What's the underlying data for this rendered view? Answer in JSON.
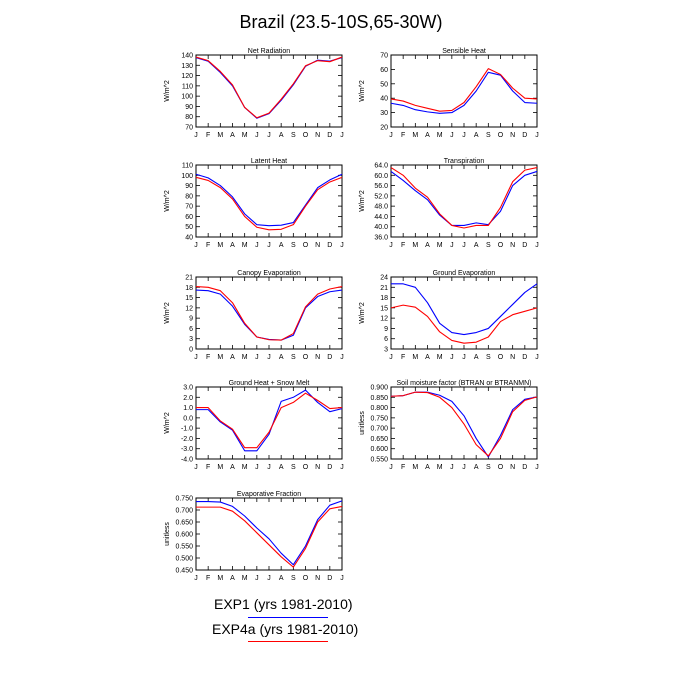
{
  "page_title": "Brazil (23.5-10S,65-30W)",
  "colors": {
    "exp1": "#0000ff",
    "exp4a": "#ff0000"
  },
  "legend": [
    {
      "label": "EXP1 (yrs 1981-2010)",
      "color": "#0000ff"
    },
    {
      "label": "EXP4a (yrs 1981-2010)",
      "color": "#ff0000"
    }
  ],
  "chart_data": [
    {
      "type": "line",
      "title": "Net Radiation",
      "ylabel": "W/m^2",
      "ylim": [
        70,
        140
      ],
      "yticks": [
        "70",
        "80",
        "90",
        "100",
        "110",
        "120",
        "130",
        "140"
      ],
      "categories": [
        "J",
        "F",
        "M",
        "A",
        "M",
        "J",
        "J",
        "A",
        "S",
        "O",
        "N",
        "D",
        "J"
      ],
      "series": [
        {
          "name": "EXP1 (yrs 1981-2010)",
          "values": [
            137.5,
            134,
            123,
            110,
            89,
            78.5,
            83,
            96,
            111,
            129,
            135,
            134,
            137.5
          ]
        },
        {
          "name": "EXP4a (yrs 1981-2010)",
          "values": [
            138,
            134.5,
            124,
            111,
            89,
            79,
            83.5,
            97,
            112,
            129.5,
            134.5,
            133.5,
            138
          ]
        }
      ]
    },
    {
      "type": "line",
      "title": "Sensible Heat",
      "ylabel": "W/m^2",
      "ylim": [
        20,
        70
      ],
      "yticks": [
        "20",
        "30",
        "40",
        "50",
        "60",
        "70"
      ],
      "categories": [
        "J",
        "F",
        "M",
        "A",
        "M",
        "J",
        "J",
        "A",
        "S",
        "O",
        "N",
        "D",
        "J"
      ],
      "series": [
        {
          "name": "EXP1 (yrs 1981-2010)",
          "values": [
            36.5,
            35,
            32,
            30.5,
            29.5,
            30,
            35,
            45,
            58,
            56,
            45,
            37,
            36.5
          ]
        },
        {
          "name": "EXP4a (yrs 1981-2010)",
          "values": [
            39.5,
            38,
            35,
            33,
            31,
            31.5,
            37,
            48,
            60.5,
            56.5,
            47,
            40,
            39.5
          ]
        }
      ]
    },
    {
      "type": "line",
      "title": "Latent Heat",
      "ylabel": "W/m^2",
      "ylim": [
        40,
        110
      ],
      "yticks": [
        "40",
        "50",
        "60",
        "70",
        "80",
        "90",
        "100",
        "110"
      ],
      "categories": [
        "J",
        "F",
        "M",
        "A",
        "M",
        "J",
        "J",
        "A",
        "S",
        "O",
        "N",
        "D",
        "J"
      ],
      "series": [
        {
          "name": "EXP1 (yrs 1981-2010)",
          "values": [
            101,
            97.5,
            90,
            79,
            62.5,
            52,
            51,
            51.5,
            54,
            71,
            88,
            95.5,
            101
          ]
        },
        {
          "name": "EXP4a (yrs 1981-2010)",
          "values": [
            98,
            95,
            88,
            77,
            60,
            49.5,
            47,
            47.5,
            52,
            70,
            86,
            93.5,
            98
          ]
        }
      ]
    },
    {
      "type": "line",
      "title": "Transpiration",
      "ylabel": "W/m^2",
      "ylim": [
        36,
        64
      ],
      "yticks": [
        "36.0",
        "40.0",
        "44.0",
        "48.0",
        "52.0",
        "56.0",
        "60.0",
        "64.0"
      ],
      "categories": [
        "J",
        "F",
        "M",
        "A",
        "M",
        "J",
        "J",
        "A",
        "S",
        "O",
        "N",
        "D",
        "J"
      ],
      "series": [
        {
          "name": "EXP1 (yrs 1981-2010)",
          "values": [
            61.5,
            58,
            54,
            50.5,
            44.5,
            40.5,
            40.5,
            41.5,
            40.8,
            46,
            56,
            60,
            61.5
          ]
        },
        {
          "name": "EXP4a (yrs 1981-2010)",
          "values": [
            63,
            60,
            55,
            51.5,
            45,
            40.5,
            39.5,
            40.5,
            40.5,
            47.5,
            57.5,
            62,
            63
          ]
        }
      ]
    },
    {
      "type": "line",
      "title": "Canopy Evaporation",
      "ylabel": "W/m^2",
      "ylim": [
        0,
        21
      ],
      "yticks": [
        "0",
        "3",
        "6",
        "9",
        "12",
        "15",
        "18",
        "21"
      ],
      "categories": [
        "J",
        "F",
        "M",
        "A",
        "M",
        "J",
        "J",
        "A",
        "S",
        "O",
        "N",
        "D",
        "J"
      ],
      "series": [
        {
          "name": "EXP1 (yrs 1981-2010)",
          "values": [
            17.2,
            17,
            16,
            12.5,
            7.2,
            3.5,
            2.8,
            2.6,
            4,
            12,
            15.3,
            16.7,
            17.2
          ]
        },
        {
          "name": "EXP4a (yrs 1981-2010)",
          "values": [
            18.2,
            18,
            17,
            13.5,
            7.5,
            3.5,
            2.7,
            2.6,
            4.5,
            12.3,
            16,
            17.5,
            18.2
          ]
        }
      ]
    },
    {
      "type": "line",
      "title": "Ground Evaporation",
      "ylabel": "W/m^2",
      "ylim": [
        3,
        24
      ],
      "yticks": [
        "3",
        "6",
        "9",
        "12",
        "15",
        "18",
        "21",
        "24"
      ],
      "categories": [
        "J",
        "F",
        "M",
        "A",
        "M",
        "J",
        "J",
        "A",
        "S",
        "O",
        "N",
        "D",
        "J"
      ],
      "series": [
        {
          "name": "EXP1 (yrs 1981-2010)",
          "values": [
            22,
            22,
            21,
            16.5,
            10.5,
            7.8,
            7.2,
            7.8,
            9,
            12.5,
            16,
            19.5,
            22
          ]
        },
        {
          "name": "EXP4a (yrs 1981-2010)",
          "values": [
            15,
            15.8,
            15.2,
            12.5,
            8,
            5.5,
            4.7,
            5,
            6.5,
            11,
            13,
            14,
            15
          ]
        }
      ]
    },
    {
      "type": "line",
      "title": "Ground Heat + Snow Melt",
      "ylabel": "W/m^2",
      "ylim": [
        -4,
        3
      ],
      "yticks": [
        "-4.0",
        "-3.0",
        "-2.0",
        "-1.0",
        "0.0",
        "1.0",
        "2.0",
        "3.0"
      ],
      "categories": [
        "J",
        "F",
        "M",
        "A",
        "M",
        "J",
        "J",
        "A",
        "S",
        "O",
        "N",
        "D",
        "J"
      ],
      "series": [
        {
          "name": "EXP1 (yrs 1981-2010)",
          "values": [
            0.8,
            0.8,
            -0.4,
            -1.2,
            -3.2,
            -3.2,
            -1.6,
            1.6,
            2,
            2.7,
            1.5,
            0.6,
            0.9
          ]
        },
        {
          "name": "EXP4a (yrs 1981-2010)",
          "values": [
            1,
            1,
            -0.3,
            -1.1,
            -2.9,
            -2.9,
            -1.4,
            1,
            1.5,
            2.4,
            1.7,
            0.9,
            1
          ]
        }
      ]
    },
    {
      "type": "line",
      "title": "Soil moisture factor (BTRAN or BTRANMN)",
      "ylabel": "unitless",
      "ylim": [
        0.55,
        0.9
      ],
      "yticks": [
        "0.550",
        "0.600",
        "0.650",
        "0.700",
        "0.750",
        "0.800",
        "0.850",
        "0.900"
      ],
      "categories": [
        "J",
        "F",
        "M",
        "A",
        "M",
        "J",
        "J",
        "A",
        "S",
        "O",
        "N",
        "D",
        "J"
      ],
      "series": [
        {
          "name": "EXP1 (yrs 1981-2010)",
          "values": [
            0.855,
            0.858,
            0.875,
            0.875,
            0.86,
            0.83,
            0.76,
            0.65,
            0.56,
            0.665,
            0.79,
            0.84,
            0.852
          ]
        },
        {
          "name": "EXP4a (yrs 1981-2010)",
          "values": [
            0.855,
            0.858,
            0.875,
            0.873,
            0.85,
            0.8,
            0.72,
            0.62,
            0.565,
            0.65,
            0.78,
            0.835,
            0.852
          ]
        }
      ]
    },
    {
      "type": "line",
      "title": "Evaporative Fraction",
      "ylabel": "unitless",
      "ylim": [
        0.45,
        0.75
      ],
      "yticks": [
        "0.450",
        "0.500",
        "0.550",
        "0.600",
        "0.650",
        "0.700",
        "0.750"
      ],
      "categories": [
        "J",
        "F",
        "M",
        "A",
        "M",
        "J",
        "J",
        "A",
        "S",
        "O",
        "N",
        "D",
        "J"
      ],
      "series": [
        {
          "name": "EXP1 (yrs 1981-2010)",
          "values": [
            0.735,
            0.735,
            0.733,
            0.715,
            0.675,
            0.625,
            0.58,
            0.52,
            0.472,
            0.55,
            0.66,
            0.72,
            0.738
          ]
        },
        {
          "name": "EXP4a (yrs 1981-2010)",
          "values": [
            0.712,
            0.712,
            0.712,
            0.695,
            0.655,
            0.605,
            0.555,
            0.505,
            0.462,
            0.54,
            0.65,
            0.705,
            0.715
          ]
        }
      ]
    }
  ]
}
